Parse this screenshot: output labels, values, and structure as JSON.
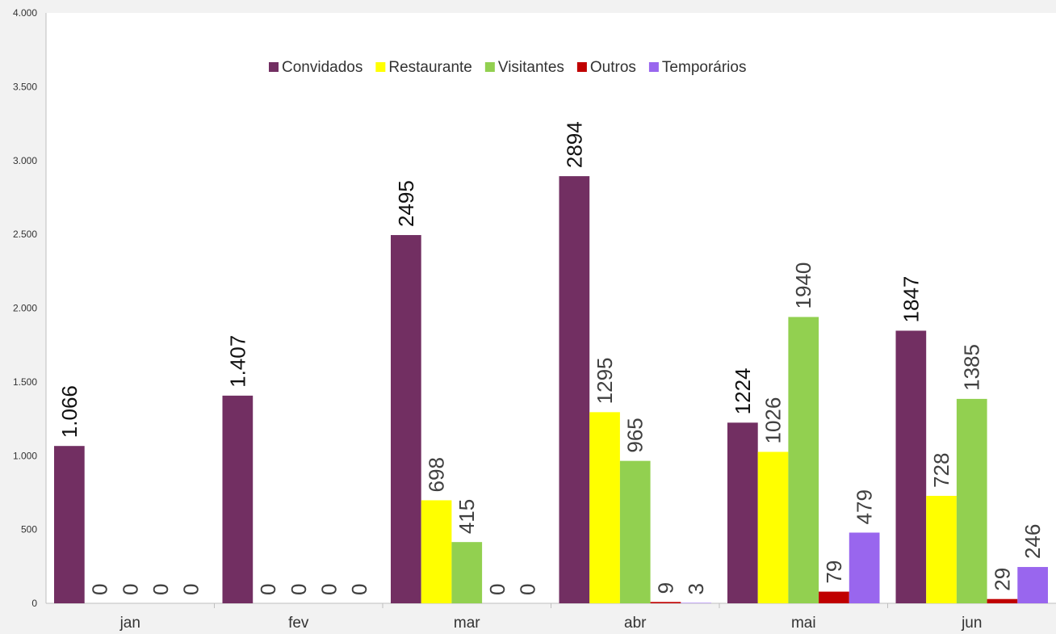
{
  "chart_data": {
    "type": "bar",
    "title": "",
    "xlabel": "",
    "ylabel": "",
    "ylim": [
      0,
      4000
    ],
    "yticks": [
      0,
      500,
      1000,
      1500,
      2000,
      2500,
      3000,
      3500,
      4000
    ],
    "ytick_labels": [
      "0",
      "500",
      "1.000",
      "1.500",
      "2.000",
      "2.500",
      "3.000",
      "3.500",
      "4.000"
    ],
    "grid": false,
    "legend_position": "top-center",
    "categories": [
      "jan",
      "fev",
      "mar",
      "abr",
      "mai",
      "jun"
    ],
    "series": [
      {
        "name": "Convidados",
        "color": "#722f62",
        "values": [
          1066,
          1407,
          2495,
          2894,
          1224,
          1847
        ],
        "labels": [
          "1.066",
          "1.407",
          "2495",
          "2894",
          "1224",
          "1847"
        ],
        "label_color": "#111111"
      },
      {
        "name": "Restaurante",
        "color": "#ffff00",
        "values": [
          0,
          0,
          698,
          1295,
          1026,
          728
        ],
        "labels": [
          "0",
          "0",
          "698",
          "1295",
          "1026",
          "728"
        ],
        "label_color": "#404040"
      },
      {
        "name": "Visitantes",
        "color": "#92d050",
        "values": [
          0,
          0,
          415,
          965,
          1940,
          1385
        ],
        "labels": [
          "0",
          "0",
          "415",
          "965",
          "1940",
          "1385"
        ],
        "label_color": "#404040"
      },
      {
        "name": "Outros",
        "color": "#c00000",
        "values": [
          0,
          0,
          0,
          9,
          79,
          29
        ],
        "labels": [
          "0",
          "0",
          "0",
          "9",
          "79",
          "29"
        ],
        "label_color": "#404040"
      },
      {
        "name": "Temporários",
        "color": "#9966ee",
        "values": [
          0,
          0,
          0,
          3,
          479,
          246
        ],
        "labels": [
          "0",
          "0",
          "0",
          "3",
          "479",
          "246"
        ],
        "label_color": "#404040"
      }
    ]
  }
}
